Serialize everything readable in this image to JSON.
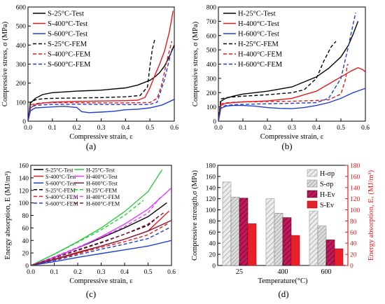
{
  "chart_data": [
    {
      "panel_label": "(a)",
      "type": "line",
      "xlabel": "Compressive strain, ε",
      "ylabel": "Compressive stress, σ (MPa)",
      "xlim": [
        0.0,
        0.6
      ],
      "ylim": [
        0,
        600
      ],
      "xticks": [
        "0.0",
        "0.1",
        "0.2",
        "0.3",
        "0.4",
        "0.5",
        "0.6"
      ],
      "yticks": [
        "0",
        "100",
        "200",
        "300",
        "400",
        "500",
        "600"
      ],
      "legend_position": "top-left",
      "series": [
        {
          "name": "S-25°C-Test",
          "color": "#000000",
          "dash": "solid",
          "x": [
            0,
            0.01,
            0.03,
            0.06,
            0.1,
            0.2,
            0.3,
            0.4,
            0.45,
            0.5,
            0.52,
            0.54,
            0.56,
            0.58,
            0.6
          ],
          "y": [
            0,
            95,
            120,
            140,
            150,
            158,
            163,
            175,
            190,
            215,
            232,
            255,
            290,
            340,
            400
          ]
        },
        {
          "name": "S-400°C-Test",
          "color": "#e41a1c",
          "dash": "solid",
          "x": [
            0,
            0.01,
            0.03,
            0.06,
            0.1,
            0.2,
            0.3,
            0.4,
            0.45,
            0.48,
            0.5,
            0.52,
            0.54,
            0.56,
            0.58,
            0.595
          ],
          "y": [
            0,
            70,
            88,
            95,
            100,
            104,
            106,
            108,
            110,
            125,
            175,
            240,
            300,
            370,
            470,
            580
          ]
        },
        {
          "name": "S-600°C-Test",
          "color": "#1f3fcf",
          "dash": "solid",
          "x": [
            0,
            0.01,
            0.03,
            0.06,
            0.1,
            0.15,
            0.2,
            0.22,
            0.25,
            0.3,
            0.35,
            0.4,
            0.45,
            0.5,
            0.55,
            0.6
          ],
          "y": [
            0,
            55,
            70,
            72,
            75,
            78,
            72,
            50,
            45,
            48,
            52,
            60,
            63,
            70,
            85,
            115
          ]
        },
        {
          "name": "S-25°C-FEM",
          "color": "#000000",
          "dash": "dashed",
          "x": [
            0,
            0.01,
            0.03,
            0.06,
            0.1,
            0.2,
            0.3,
            0.4,
            0.46,
            0.49,
            0.5,
            0.51,
            0.52
          ],
          "y": [
            0,
            100,
            112,
            118,
            120,
            122,
            124,
            128,
            135,
            180,
            290,
            380,
            430
          ]
        },
        {
          "name": "S-400°C-FEM",
          "color": "#e41a1c",
          "dash": "dashed",
          "x": [
            0,
            0.01,
            0.03,
            0.06,
            0.1,
            0.2,
            0.3,
            0.4,
            0.5,
            0.53,
            0.55,
            0.57,
            0.59
          ],
          "y": [
            0,
            85,
            92,
            96,
            97,
            97,
            96,
            96,
            98,
            120,
            200,
            320,
            420
          ]
        },
        {
          "name": "S-600°C-FEM",
          "color": "#1f3fcf",
          "dash": "dashed",
          "x": [
            0,
            0.01,
            0.03,
            0.06,
            0.1,
            0.2,
            0.3,
            0.4,
            0.5,
            0.53,
            0.56,
            0.59
          ],
          "y": [
            0,
            75,
            82,
            86,
            88,
            89,
            88,
            87,
            88,
            100,
            220,
            380
          ]
        }
      ]
    },
    {
      "panel_label": "(b)",
      "type": "line",
      "xlabel": "Compressive strain, ε",
      "ylabel": "Compressive stress, σ (MPa)",
      "xlim": [
        0.0,
        0.6
      ],
      "ylim": [
        0,
        800
      ],
      "xticks": [
        "0.0",
        "0.1",
        "0.2",
        "0.3",
        "0.4",
        "0.5",
        "0.6"
      ],
      "yticks": [
        "0",
        "100",
        "200",
        "300",
        "400",
        "500",
        "600",
        "700",
        "800"
      ],
      "legend_position": "top-left",
      "series": [
        {
          "name": "H-25°C-Test",
          "color": "#000000",
          "dash": "solid",
          "x": [
            0,
            0.01,
            0.03,
            0.06,
            0.1,
            0.2,
            0.3,
            0.4,
            0.45,
            0.5,
            0.53,
            0.55,
            0.57
          ],
          "y": [
            0,
            140,
            160,
            175,
            190,
            210,
            240,
            310,
            370,
            450,
            530,
            610,
            700
          ]
        },
        {
          "name": "H-400°C-Test",
          "color": "#e41a1c",
          "dash": "solid",
          "x": [
            0,
            0.01,
            0.03,
            0.06,
            0.1,
            0.2,
            0.3,
            0.4,
            0.45,
            0.5,
            0.54,
            0.57,
            0.59,
            0.6
          ],
          "y": [
            0,
            110,
            125,
            130,
            135,
            142,
            160,
            210,
            260,
            310,
            350,
            375,
            360,
            345
          ]
        },
        {
          "name": "H-600°C-Test",
          "color": "#1f3fcf",
          "dash": "solid",
          "x": [
            0,
            0.01,
            0.03,
            0.06,
            0.1,
            0.15,
            0.2,
            0.25,
            0.3,
            0.35,
            0.4,
            0.45,
            0.5,
            0.55,
            0.6
          ],
          "y": [
            0,
            90,
            105,
            110,
            110,
            105,
            95,
            90,
            88,
            95,
            110,
            130,
            160,
            200,
            230
          ]
        },
        {
          "name": "H-25°C-FEM",
          "color": "#000000",
          "dash": "dashed",
          "x": [
            0,
            0.01,
            0.03,
            0.06,
            0.1,
            0.2,
            0.3,
            0.35,
            0.4,
            0.43,
            0.46,
            0.48
          ],
          "y": [
            0,
            155,
            165,
            170,
            175,
            185,
            200,
            220,
            300,
            420,
            520,
            560
          ]
        },
        {
          "name": "H-400°C-FEM",
          "color": "#e41a1c",
          "dash": "dashed",
          "x": [
            0,
            0.01,
            0.03,
            0.06,
            0.1,
            0.2,
            0.3,
            0.4,
            0.45,
            0.5,
            0.52,
            0.525,
            0.53
          ],
          "y": [
            0,
            120,
            128,
            132,
            135,
            138,
            140,
            145,
            150,
            190,
            300,
            390,
            400
          ]
        },
        {
          "name": "H-600°C-FEM",
          "color": "#1f3fcf",
          "dash": "dashed",
          "x": [
            0,
            0.01,
            0.03,
            0.06,
            0.1,
            0.2,
            0.3,
            0.4,
            0.45,
            0.5,
            0.53,
            0.56
          ],
          "y": [
            0,
            95,
            110,
            115,
            118,
            122,
            125,
            130,
            160,
            300,
            520,
            760
          ]
        }
      ]
    },
    {
      "panel_label": "(c)",
      "type": "line",
      "xlabel": "Compressive strain, ε",
      "ylabel": "Energy absorption, E (MJ/m³)",
      "xlim": [
        0.0,
        0.6
      ],
      "ylim": [
        0,
        160
      ],
      "xticks": [
        "0.0",
        "0.1",
        "0.2",
        "0.3",
        "0.4",
        "0.5",
        "0.6"
      ],
      "yticks": [
        "0",
        "20",
        "40",
        "60",
        "80",
        "100",
        "120",
        "140",
        "160"
      ],
      "legend_position": "top-left",
      "series": [
        {
          "name": "S-25°C-Test",
          "color": "#000000",
          "dash": "solid",
          "x": [
            0,
            0.1,
            0.2,
            0.3,
            0.4,
            0.5,
            0.58
          ],
          "y": [
            0,
            13,
            28,
            44,
            60,
            78,
            100
          ]
        },
        {
          "name": "S-400°C-Test",
          "color": "#e41a1c",
          "dash": "solid",
          "x": [
            0,
            0.1,
            0.2,
            0.3,
            0.4,
            0.5,
            0.59
          ],
          "y": [
            0,
            9,
            20,
            31,
            42,
            55,
            87
          ]
        },
        {
          "name": "S-600°C-Test",
          "color": "#1f3fcf",
          "dash": "solid",
          "x": [
            0,
            0.1,
            0.2,
            0.3,
            0.4,
            0.5,
            0.6
          ],
          "y": [
            0,
            6,
            13,
            19,
            25,
            31,
            40
          ]
        },
        {
          "name": "S-25°C-FEM",
          "color": "#000000",
          "dash": "dashed",
          "x": [
            0,
            0.1,
            0.2,
            0.3,
            0.4,
            0.5,
            0.55
          ],
          "y": [
            0,
            12,
            25,
            37,
            50,
            64,
            80
          ]
        },
        {
          "name": "S-400°C-FEM",
          "color": "#e41a1c",
          "dash": "dashed",
          "x": [
            0,
            0.1,
            0.2,
            0.3,
            0.4,
            0.5,
            0.59
          ],
          "y": [
            0,
            9,
            19,
            29,
            38,
            49,
            68
          ]
        },
        {
          "name": "S-600°C-FEM",
          "color": "#1f3fcf",
          "dash": "dashed",
          "x": [
            0,
            0.1,
            0.2,
            0.3,
            0.4,
            0.5,
            0.59
          ],
          "y": [
            0,
            8,
            17,
            26,
            34,
            43,
            60
          ]
        },
        {
          "name": "H-25°C-Test",
          "color": "#2ecc40",
          "dash": "solid",
          "x": [
            0,
            0.1,
            0.2,
            0.3,
            0.4,
            0.5,
            0.56
          ],
          "y": [
            0,
            18,
            38,
            60,
            86,
            118,
            153
          ]
        },
        {
          "name": "H-400°C-Test",
          "color": "#e040fb",
          "dash": "solid",
          "x": [
            0,
            0.1,
            0.2,
            0.3,
            0.4,
            0.5,
            0.6
          ],
          "y": [
            0,
            13,
            28,
            46,
            66,
            90,
            124
          ]
        },
        {
          "name": "H-600°C-Test",
          "color": "#8b1a3a",
          "dash": "solid",
          "x": [
            0,
            0.1,
            0.2,
            0.3,
            0.4,
            0.5,
            0.6
          ],
          "y": [
            0,
            10,
            21,
            31,
            42,
            55,
            72
          ]
        },
        {
          "name": "H-25°C-FEM",
          "color": "#2ecc40",
          "dash": "dashed",
          "x": [
            0,
            0.1,
            0.2,
            0.3,
            0.4,
            0.48
          ],
          "y": [
            0,
            18,
            37,
            57,
            80,
            104
          ]
        },
        {
          "name": "H-400°C-FEM",
          "color": "#e040fb",
          "dash": "dashed",
          "x": [
            0,
            0.1,
            0.2,
            0.3,
            0.4,
            0.5,
            0.55
          ],
          "y": [
            0,
            14,
            29,
            45,
            62,
            84,
            108
          ]
        },
        {
          "name": "H-600°C-FEM",
          "color": "#8b1a3a",
          "dash": "dashed",
          "x": [
            0,
            0.1,
            0.2,
            0.3,
            0.4,
            0.5,
            0.57
          ],
          "y": [
            0,
            12,
            24,
            36,
            50,
            66,
            85
          ]
        }
      ]
    },
    {
      "panel_label": "(d)",
      "type": "bar",
      "categories": [
        "25",
        "400",
        "600"
      ],
      "xlabel": "Temperature(°C)",
      "ylabel": "Compressive strength,σ (MPa)",
      "ylabel_right": "Energy absorption, Eᵥ (MJ/m³)",
      "ylim": [
        0,
        180
      ],
      "ylim_right": [
        0,
        180
      ],
      "yticks": [
        "0",
        "20",
        "40",
        "60",
        "80",
        "100",
        "120",
        "140",
        "160",
        "180"
      ],
      "legend_position": "top-right",
      "series": [
        {
          "name": "H-σp",
          "axis": "left",
          "fill": "#e8e8e8",
          "hatch": "diagonal-gray",
          "values": [
            150,
            120,
            98
          ]
        },
        {
          "name": "S-σp",
          "axis": "left",
          "fill": "#d6d6d6",
          "hatch": "diagonal-gray-dense",
          "values": [
            123,
            94,
            71
          ]
        },
        {
          "name": "H-Ev",
          "axis": "right",
          "fill": "#c2185b",
          "hatch": "diagonal-dark",
          "values": [
            121,
            86,
            46
          ]
        },
        {
          "name": "S-Ev",
          "axis": "right",
          "fill": "#e8202a",
          "hatch": "none",
          "values": [
            75,
            54,
            30
          ]
        }
      ]
    }
  ]
}
